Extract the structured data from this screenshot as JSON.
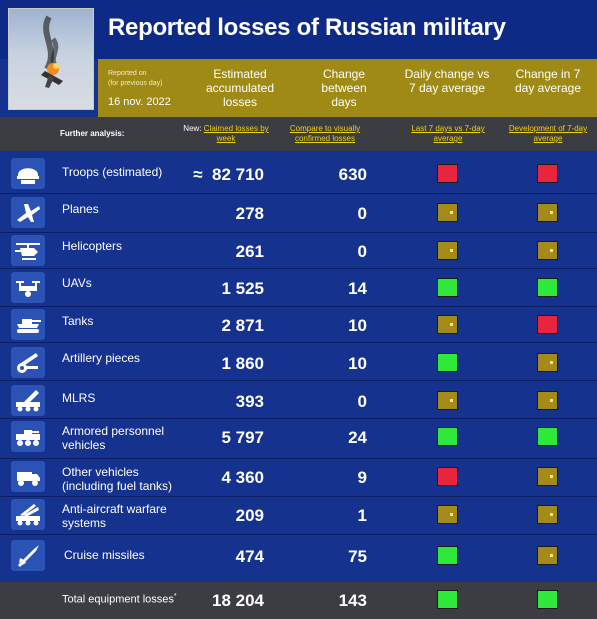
{
  "header": {
    "title": "Reported losses of Russian military",
    "reported_on_label": "Reported on",
    "reported_on_note": "(for previous day)",
    "date": "16 nov. 2022",
    "col_estimated": "Estimated accumulated losses",
    "col_change": "Change between days",
    "col_daily_vs_avg": "Daily change vs 7 day average",
    "col_change_avg": "Change in 7 day average"
  },
  "subheader": {
    "further_analysis": "Further analysis:",
    "new_label": "New:",
    "claimed_by_week": "Claimed losses by week",
    "compare_visually": "Compare to visually confirmed losses",
    "last7_vs_7day": "Last 7 days vs 7-day average",
    "development_7day": "Development of 7-day average"
  },
  "colors": {
    "red": "#e8253c",
    "green": "#2ee83a",
    "gold": "#a48a18",
    "background": "#16328f",
    "header_gold": "#a08a16",
    "link_yellow": "#f1d10d"
  },
  "rows": [
    {
      "icon": "helmet-icon",
      "name": "Troops (estimated)",
      "prefix": "≈",
      "value": "82 710",
      "change": "630",
      "daily": "red",
      "trend": "red"
    },
    {
      "icon": "plane-icon",
      "name": "Planes",
      "prefix": "",
      "value": "278",
      "change": "0",
      "daily": "gold",
      "trend": "gold"
    },
    {
      "icon": "helicopter-icon",
      "name": "Helicopters",
      "prefix": "",
      "value": "261",
      "change": "0",
      "daily": "gold",
      "trend": "gold"
    },
    {
      "icon": "drone-icon",
      "name": "UAVs",
      "prefix": "",
      "value": "1 525",
      "change": "14",
      "daily": "green",
      "trend": "green"
    },
    {
      "icon": "tank-icon",
      "name": "Tanks",
      "prefix": "",
      "value": "2 871",
      "change": "10",
      "daily": "gold",
      "trend": "red"
    },
    {
      "icon": "artillery-icon",
      "name": "Artillery pieces",
      "prefix": "",
      "value": "1 860",
      "change": "10",
      "daily": "green",
      "trend": "gold"
    },
    {
      "icon": "rocket-launcher-icon",
      "name": "MLRS",
      "prefix": "",
      "value": "393",
      "change": "0",
      "daily": "gold",
      "trend": "gold"
    },
    {
      "icon": "apc-icon",
      "name": "Armored personnel vehicles",
      "prefix": "",
      "value": "5 797",
      "change": "24",
      "daily": "green",
      "trend": "green"
    },
    {
      "icon": "truck-icon",
      "name": "Other vehicles (including fuel tanks)",
      "prefix": "",
      "value": "4 360",
      "change": "9",
      "daily": "red",
      "trend": "gold"
    },
    {
      "icon": "anti-aircraft-icon",
      "name": "Anti-aircraft warfare systems",
      "prefix": "",
      "value": "209",
      "change": "1",
      "daily": "gold",
      "trend": "gold"
    },
    {
      "icon": "missile-icon",
      "name": "Cruise missiles",
      "prefix": "",
      "value": "474",
      "change": "75",
      "daily": "green",
      "trend": "gold"
    }
  ],
  "total": {
    "name": "Total equipment losses",
    "marker": "*",
    "value": "18 204",
    "change": "143",
    "daily": "green",
    "trend": "green"
  }
}
